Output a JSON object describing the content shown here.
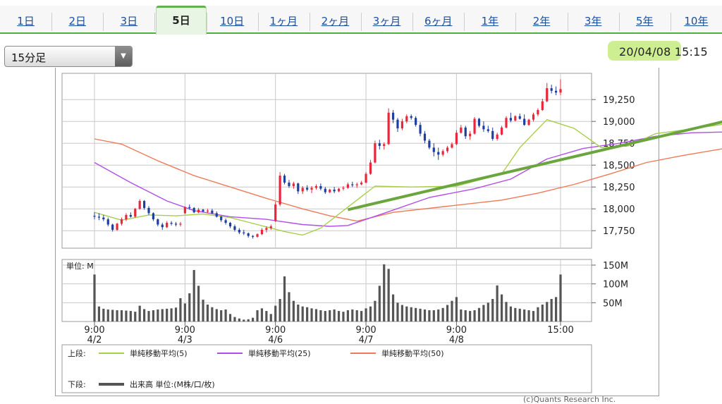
{
  "tabs": [
    {
      "label": "1日",
      "active": false
    },
    {
      "label": "2日",
      "active": false
    },
    {
      "label": "3日",
      "active": false
    },
    {
      "label": "5日",
      "active": true
    },
    {
      "label": "10日",
      "active": false
    },
    {
      "label": "1ヶ月",
      "active": false
    },
    {
      "label": "2ヶ月",
      "active": false
    },
    {
      "label": "3ヶ月",
      "active": false
    },
    {
      "label": "6ヶ月",
      "active": false
    },
    {
      "label": "1年",
      "active": false
    },
    {
      "label": "2年",
      "active": false
    },
    {
      "label": "3年",
      "active": false
    },
    {
      "label": "5年",
      "active": false
    },
    {
      "label": "10年",
      "active": false
    }
  ],
  "interval_select": {
    "value": "15分足"
  },
  "datetime": "20/04/08 15:15",
  "copyright": "(c)Quants Research Inc.",
  "colors": {
    "up": "#e8263c",
    "down": "#1f3f9e",
    "ma5": "#a7cf4a",
    "ma25": "#b04ee8",
    "ma50": "#ef7a58",
    "highlight": "#6aa53d",
    "volume": "#555555",
    "tab_accent": "#4fb03f"
  },
  "chart_data": {
    "type": "candlestick",
    "price_axis": {
      "min": 17550,
      "max": 19550,
      "ticks": [
        17750,
        18000,
        18250,
        18500,
        18750,
        19000,
        19250
      ],
      "tick_labels": [
        "17,750",
        "18,000",
        "18,250",
        "18,500",
        "18,750",
        "19,000",
        "19,250"
      ]
    },
    "volume_axis": {
      "unit_label": "単位: M",
      "max": 165,
      "ticks": [
        50,
        100,
        150
      ],
      "tick_labels": [
        "50M",
        "100M",
        "150M"
      ]
    },
    "x_labels": [
      {
        "time": "9:00",
        "date": "4/2"
      },
      {
        "time": "9:00",
        "date": "4/3"
      },
      {
        "time": "9:00",
        "date": "4/6"
      },
      {
        "time": "9:00",
        "date": "4/7"
      },
      {
        "time": "9:00",
        "date": "4/8"
      },
      {
        "time": "15:00",
        "date": ""
      }
    ],
    "days": [
      {
        "date": "4/2",
        "candles": [
          [
            17920,
            17960,
            17880,
            17910
          ],
          [
            17910,
            17950,
            17870,
            17900
          ],
          [
            17900,
            17930,
            17860,
            17880
          ],
          [
            17880,
            17900,
            17800,
            17820
          ],
          [
            17820,
            17830,
            17740,
            17760
          ],
          [
            17760,
            17840,
            17750,
            17830
          ],
          [
            17830,
            17900,
            17810,
            17880
          ],
          [
            17880,
            17950,
            17860,
            17930
          ],
          [
            17930,
            17960,
            17900,
            17910
          ],
          [
            17910,
            18010,
            17900,
            18000
          ],
          [
            18000,
            18110,
            17990,
            18090
          ],
          [
            18090,
            18100,
            17990,
            18010
          ],
          [
            18010,
            18030,
            17930,
            17950
          ],
          [
            17950,
            17960,
            17860,
            17880
          ],
          [
            17880,
            17890,
            17800,
            17820
          ],
          [
            17820,
            17840,
            17760,
            17790
          ],
          [
            17790,
            17860,
            17780,
            17840
          ],
          [
            17840,
            17860,
            17810,
            17830
          ],
          [
            17830,
            17850,
            17800,
            17820
          ],
          [
            17820,
            17850,
            17800,
            17830
          ]
        ],
        "volume": [
          125,
          40,
          34,
          32,
          31,
          30,
          30,
          29,
          28,
          26,
          42,
          33,
          28,
          30,
          32,
          33,
          34,
          35,
          37,
          62
        ]
      },
      {
        "date": "4/3",
        "candles": [
          [
            17950,
            18030,
            17940,
            18020
          ],
          [
            18020,
            18050,
            17990,
            18010
          ],
          [
            18010,
            18020,
            17950,
            17960
          ],
          [
            17960,
            18010,
            17950,
            17990
          ],
          [
            17990,
            18000,
            17960,
            17970
          ],
          [
            17970,
            18000,
            17950,
            17980
          ],
          [
            17980,
            18000,
            17940,
            17950
          ],
          [
            17950,
            17970,
            17900,
            17910
          ],
          [
            17910,
            17920,
            17850,
            17870
          ],
          [
            17870,
            17890,
            17820,
            17840
          ],
          [
            17840,
            17850,
            17780,
            17800
          ],
          [
            17800,
            17820,
            17740,
            17760
          ],
          [
            17760,
            17780,
            17710,
            17730
          ],
          [
            17730,
            17760,
            17700,
            17720
          ],
          [
            17720,
            17730,
            17670,
            17690
          ],
          [
            17690,
            17700,
            17660,
            17680
          ],
          [
            17680,
            17720,
            17670,
            17710
          ],
          [
            17710,
            17780,
            17700,
            17760
          ],
          [
            17760,
            17800,
            17730,
            17780
          ],
          [
            17780,
            17820,
            17760,
            17800
          ]
        ],
        "volume": [
          48,
          75,
          137,
          95,
          58,
          45,
          38,
          33,
          30,
          32,
          20,
          12,
          8,
          5,
          6,
          10,
          30,
          35,
          28,
          20
        ]
      },
      {
        "date": "4/6",
        "candles": [
          [
            17860,
            18080,
            17850,
            18050
          ],
          [
            18050,
            18420,
            18030,
            18380
          ],
          [
            18380,
            18400,
            18280,
            18300
          ],
          [
            18300,
            18330,
            18240,
            18260
          ],
          [
            18260,
            18310,
            18230,
            18290
          ],
          [
            18290,
            18300,
            18170,
            18200
          ],
          [
            18200,
            18260,
            18170,
            18240
          ],
          [
            18240,
            18270,
            18200,
            18220
          ],
          [
            18220,
            18260,
            18180,
            18240
          ],
          [
            18240,
            18280,
            18220,
            18260
          ],
          [
            18260,
            18290,
            18210,
            18230
          ],
          [
            18230,
            18250,
            18170,
            18190
          ],
          [
            18190,
            18230,
            18180,
            18220
          ],
          [
            18220,
            18250,
            18180,
            18200
          ],
          [
            18200,
            18240,
            18190,
            18230
          ],
          [
            18230,
            18260,
            18210,
            18240
          ],
          [
            18240,
            18300,
            18230,
            18280
          ],
          [
            18280,
            18310,
            18250,
            18270
          ],
          [
            18270,
            18300,
            18240,
            18280
          ],
          [
            18280,
            18320,
            18270,
            18300
          ]
        ],
        "volume": [
          42,
          60,
          120,
          78,
          55,
          45,
          40,
          38,
          35,
          33,
          30,
          28,
          30,
          32,
          28,
          26,
          30,
          32,
          30,
          28
        ]
      },
      {
        "date": "4/7",
        "candles": [
          [
            18300,
            18420,
            18290,
            18400
          ],
          [
            18400,
            18560,
            18390,
            18530
          ],
          [
            18530,
            18780,
            18520,
            18750
          ],
          [
            18750,
            18790,
            18680,
            18720
          ],
          [
            18720,
            18760,
            18680,
            18740
          ],
          [
            18740,
            19150,
            18730,
            19100
          ],
          [
            19100,
            19130,
            18980,
            19020
          ],
          [
            19020,
            19040,
            18880,
            18920
          ],
          [
            18920,
            19030,
            18900,
            19000
          ],
          [
            19000,
            19080,
            18980,
            19060
          ],
          [
            19060,
            19080,
            19020,
            19040
          ],
          [
            19040,
            19060,
            18940,
            18960
          ],
          [
            18960,
            18990,
            18830,
            18860
          ],
          [
            18860,
            18890,
            18750,
            18780
          ],
          [
            18780,
            18800,
            18680,
            18700
          ],
          [
            18700,
            18750,
            18600,
            18650
          ],
          [
            18650,
            18700,
            18560,
            18620
          ],
          [
            18620,
            18680,
            18600,
            18660
          ],
          [
            18660,
            18720,
            18640,
            18700
          ],
          [
            18700,
            18760,
            18690,
            18740
          ]
        ],
        "volume": [
          35,
          40,
          55,
          95,
          152,
          140,
          72,
          50,
          44,
          40,
          38,
          36,
          34,
          32,
          30,
          30,
          32,
          36,
          44,
          55
        ]
      },
      {
        "date": "4/8",
        "candles": [
          [
            18740,
            18900,
            18730,
            18870
          ],
          [
            18870,
            18960,
            18860,
            18930
          ],
          [
            18930,
            18950,
            18800,
            18830
          ],
          [
            18830,
            18890,
            18790,
            18860
          ],
          [
            18860,
            19050,
            18850,
            19030
          ],
          [
            19030,
            19040,
            18930,
            18950
          ],
          [
            18950,
            19000,
            18880,
            18910
          ],
          [
            18910,
            18950,
            18870,
            18890
          ],
          [
            18890,
            18930,
            18780,
            18800
          ],
          [
            18800,
            18870,
            18780,
            18850
          ],
          [
            18850,
            18950,
            18840,
            18930
          ],
          [
            18930,
            19060,
            18920,
            19040
          ],
          [
            19040,
            19100,
            18990,
            19010
          ],
          [
            19010,
            19070,
            19000,
            19060
          ],
          [
            19060,
            19090,
            19020,
            19030
          ],
          [
            19030,
            19080,
            18950,
            18960
          ],
          [
            18960,
            19030,
            18950,
            19020
          ],
          [
            19020,
            19100,
            19000,
            19080
          ],
          [
            19080,
            19150,
            19060,
            19130
          ],
          [
            19130,
            19260,
            19120,
            19230
          ],
          [
            19230,
            19440,
            19220,
            19380
          ],
          [
            19380,
            19420,
            19320,
            19350
          ],
          [
            19350,
            19400,
            19300,
            19330
          ],
          [
            19330,
            19480,
            19300,
            19370
          ]
        ],
        "volume": [
          65,
          32,
          30,
          28,
          30,
          36,
          44,
          50,
          60,
          96,
          72,
          52,
          40,
          36,
          34,
          32,
          30,
          28,
          38,
          45,
          52,
          60,
          65,
          125
        ]
      }
    ],
    "ma5": [
      [
        0,
        17960
      ],
      [
        6,
        17870
      ],
      [
        12,
        17930
      ],
      [
        18,
        17920
      ],
      [
        24,
        17940
      ],
      [
        30,
        17900
      ],
      [
        36,
        17820
      ],
      [
        42,
        17740
      ],
      [
        46,
        17700
      ],
      [
        50,
        17780
      ],
      [
        56,
        18020
      ],
      [
        62,
        18260
      ],
      [
        70,
        18250
      ],
      [
        80,
        18260
      ],
      [
        90,
        18400
      ],
      [
        94,
        18700
      ],
      [
        100,
        19020
      ],
      [
        106,
        18920
      ],
      [
        112,
        18700
      ],
      [
        118,
        18720
      ],
      [
        124,
        18860
      ],
      [
        130,
        18900
      ],
      [
        138,
        18960
      ],
      [
        146,
        19030
      ],
      [
        152,
        19120
      ],
      [
        157,
        19300
      ],
      [
        159,
        19360
      ]
    ],
    "ma25": [
      [
        0,
        18530
      ],
      [
        8,
        18300
      ],
      [
        16,
        18090
      ],
      [
        22,
        17980
      ],
      [
        30,
        17910
      ],
      [
        38,
        17880
      ],
      [
        46,
        17820
      ],
      [
        52,
        17800
      ],
      [
        56,
        17810
      ],
      [
        64,
        17950
      ],
      [
        74,
        18130
      ],
      [
        84,
        18230
      ],
      [
        92,
        18340
      ],
      [
        100,
        18570
      ],
      [
        108,
        18690
      ],
      [
        116,
        18750
      ],
      [
        124,
        18830
      ],
      [
        132,
        18870
      ],
      [
        140,
        18880
      ],
      [
        148,
        18930
      ],
      [
        154,
        18990
      ],
      [
        159,
        19080
      ]
    ],
    "ma50": [
      [
        0,
        18800
      ],
      [
        6,
        18740
      ],
      [
        14,
        18550
      ],
      [
        22,
        18380
      ],
      [
        30,
        18250
      ],
      [
        38,
        18120
      ],
      [
        46,
        18000
      ],
      [
        52,
        17920
      ],
      [
        58,
        17860
      ],
      [
        66,
        17960
      ],
      [
        78,
        18030
      ],
      [
        90,
        18100
      ],
      [
        98,
        18180
      ],
      [
        106,
        18280
      ],
      [
        114,
        18400
      ],
      [
        122,
        18530
      ],
      [
        130,
        18610
      ],
      [
        138,
        18680
      ],
      [
        146,
        18760
      ],
      [
        154,
        18840
      ],
      [
        159,
        18920
      ]
    ],
    "trendline": [
      [
        56,
        17990
      ],
      [
        159,
        19240
      ]
    ],
    "legend": {
      "upper_label": "上段:",
      "lower_label": "下段:",
      "items": [
        "単純移動平均(5)",
        "単純移動平均(25)",
        "単純移動平均(50)"
      ],
      "volume_item": "出来高 単位:(M株/口/枚)"
    }
  }
}
